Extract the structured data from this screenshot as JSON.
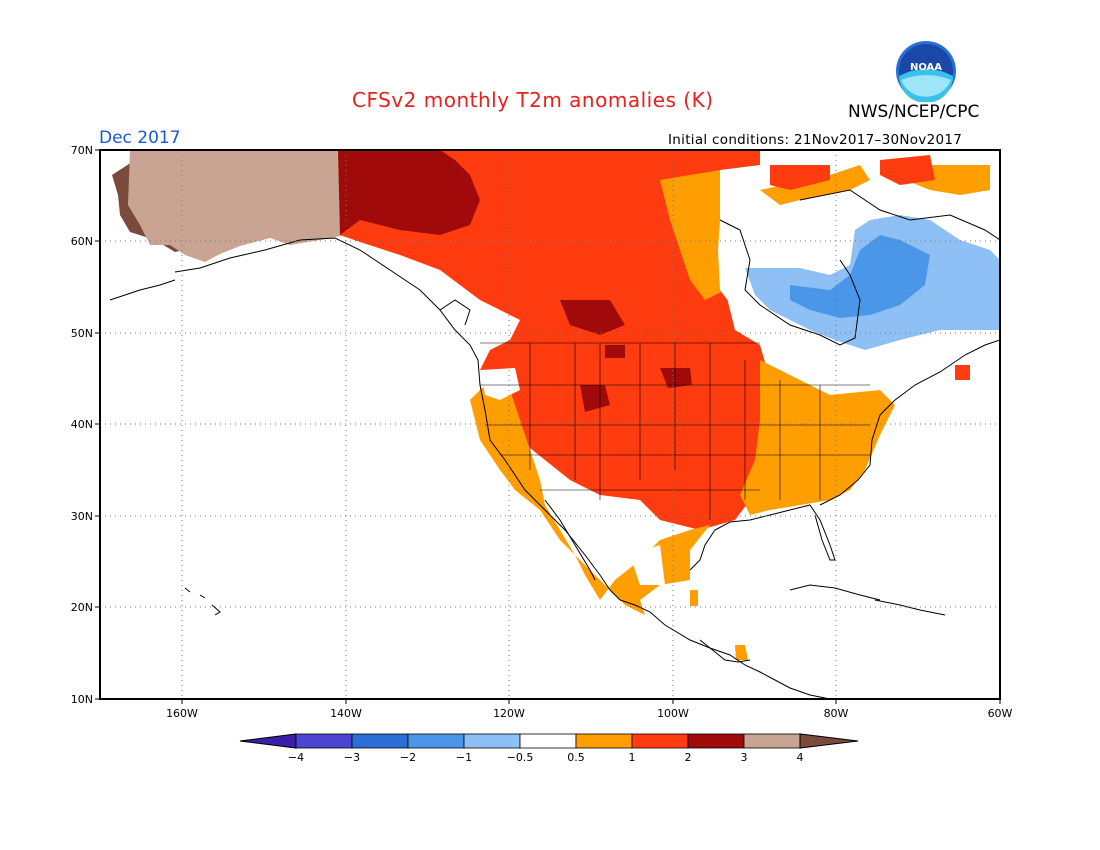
{
  "title": "CFSv2 monthly T2m anomalies (K)",
  "org": "NWS/NCEP/CPC",
  "period": "Dec 2017",
  "initial_conditions": "Initial conditions: 21Nov2017–30Nov2017",
  "logo": {
    "icon": "noaa-logo-icon",
    "text": "NOAA",
    "color": "#1565c0"
  },
  "map": {
    "lat_labels": [
      "70N",
      "60N",
      "50N",
      "40N",
      "30N",
      "20N",
      "10N"
    ],
    "lon_labels": [
      "160W",
      "140W",
      "120W",
      "100W",
      "80W",
      "60W"
    ]
  },
  "colorbar": {
    "labels": [
      "−4",
      "−3",
      "−2",
      "−1",
      "−0.5",
      "0.5",
      "1",
      "2",
      "3",
      "4"
    ],
    "colors": [
      "#3b1fa8",
      "#4a46d1",
      "#2b6fd6",
      "#4a97ea",
      "#8ec0f5",
      "#ffffff",
      "#ff9e00",
      "#ff3b10",
      "#a00a0a",
      "#c9a493",
      "#7a4a3d"
    ]
  }
}
